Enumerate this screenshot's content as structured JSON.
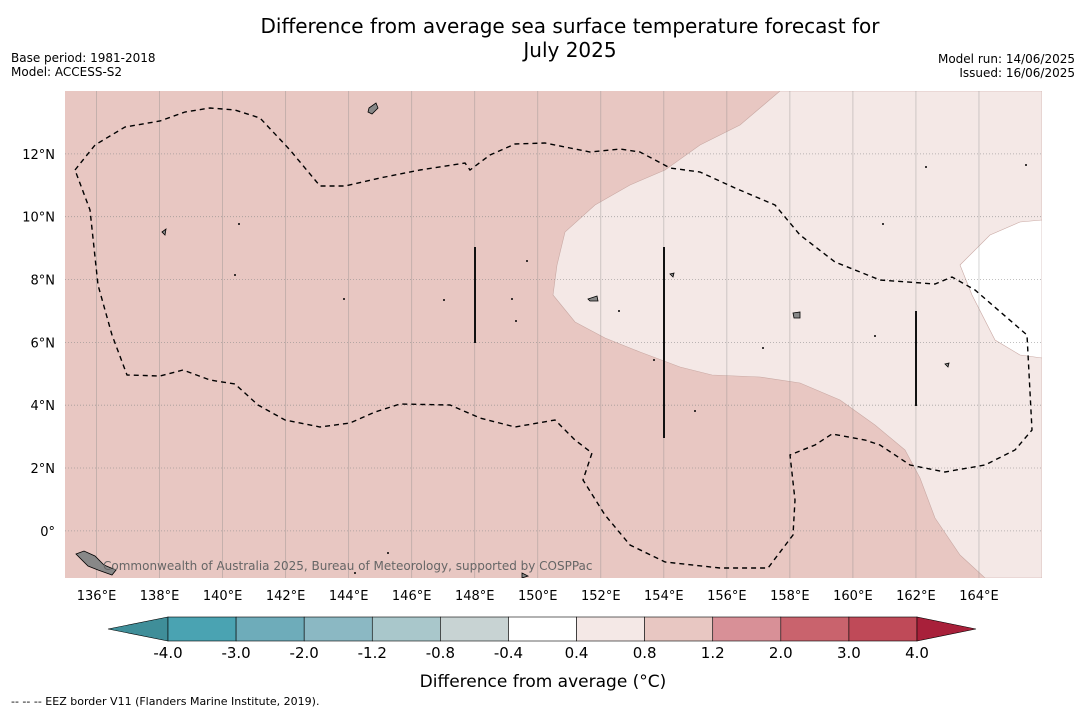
{
  "header": {
    "title_line1": "Difference from average sea surface temperature forecast for",
    "title_line2": "July 2025",
    "base_period": "Base period: 1981-2018",
    "model": "Model: ACCESS-S2",
    "model_run": "Model run: 14/06/2025",
    "issued": "Issued: 16/06/2025"
  },
  "map": {
    "lon_ticks": [
      "136°E",
      "138°E",
      "140°E",
      "142°E",
      "144°E",
      "146°E",
      "148°E",
      "150°E",
      "152°E",
      "154°E",
      "156°E",
      "158°E",
      "160°E",
      "162°E",
      "164°E"
    ],
    "lat_ticks": [
      "12°N",
      "10°N",
      "8°N",
      "6°N",
      "4°N",
      "2°N",
      "0°"
    ],
    "lon_range": [
      135,
      166
    ],
    "lat_range": [
      -1.5,
      14
    ],
    "copyright": "Commonwealth of Australia 2025, Bureau of Meteorology, supported by COSPPac",
    "fill_colors": {
      "0.8_to_1.2": "#e8c7c2",
      "0.4_to_0.8": "#f4e8e6",
      "-0.4_to_0.4": "#ffffff"
    }
  },
  "colorbar": {
    "ticks": [
      "-4.0",
      "-3.0",
      "-2.0",
      "-1.2",
      "-0.8",
      "-0.4",
      "0.4",
      "0.8",
      "1.2",
      "2.0",
      "3.0",
      "4.0"
    ],
    "colors": [
      "#3f8e99",
      "#4aa3b2",
      "#6eacba",
      "#8bb8c3",
      "#a9c7cb",
      "#c8d3d3",
      "#ffffff",
      "#f4e8e6",
      "#e8c7c2",
      "#d89097",
      "#c9636d",
      "#bf4a58",
      "#a8203a"
    ],
    "label": "Difference from average (°C)"
  },
  "footnote": "--  --  -- EEZ border V11 (Flanders Marine Institute, 2019)."
}
